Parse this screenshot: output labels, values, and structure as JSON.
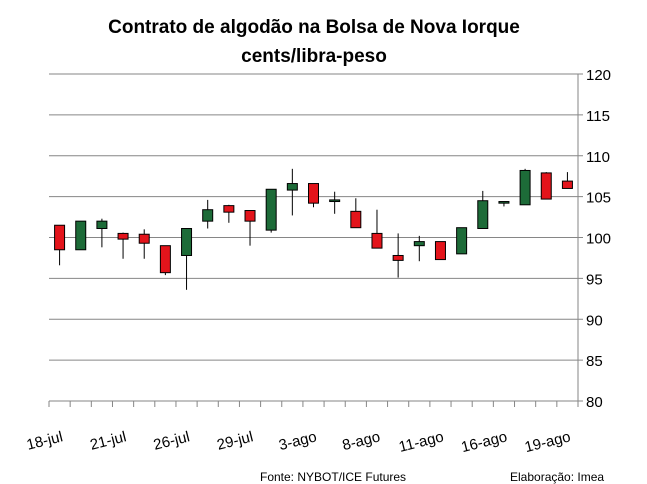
{
  "chart_data": {
    "type": "candlestick",
    "title": "Contrato de algodão na Bolsa de Nova Iorque",
    "subtitle": "cents/libra-peso",
    "categories": [
      "18-jul",
      null,
      null,
      "21-jul",
      null,
      null,
      "26-jul",
      null,
      null,
      "29-jul",
      null,
      null,
      "3-ago",
      null,
      null,
      "8-ago",
      null,
      null,
      "11-ago",
      null,
      null,
      "16-ago",
      null,
      null,
      "19-ago"
    ],
    "open": [
      101.5,
      98.5,
      101.1,
      100.5,
      100.4,
      99.0,
      97.8,
      102.0,
      103.9,
      103.3,
      100.9,
      105.8,
      106.6,
      104.4,
      103.2,
      100.5,
      97.8,
      99.0,
      99.5,
      98.0,
      101.1,
      104.2,
      104.0,
      107.9,
      106.9
    ],
    "high": [
      101.5,
      102.0,
      102.3,
      100.6,
      101.0,
      99.0,
      101.1,
      104.6,
      104.0,
      103.3,
      105.9,
      108.4,
      106.6,
      105.6,
      104.8,
      103.4,
      100.5,
      100.2,
      99.5,
      101.2,
      105.7,
      104.4,
      108.4,
      108.0,
      108.0
    ],
    "low": [
      96.6,
      98.5,
      98.8,
      97.4,
      97.4,
      95.4,
      93.6,
      101.1,
      101.8,
      99.0,
      100.6,
      102.7,
      103.7,
      102.9,
      101.2,
      98.7,
      95.1,
      97.1,
      97.3,
      98.0,
      101.1,
      103.8,
      104.0,
      104.7,
      106.0
    ],
    "close": [
      98.5,
      102.0,
      102.0,
      99.8,
      99.3,
      95.7,
      101.1,
      103.4,
      103.1,
      102.0,
      105.9,
      106.6,
      104.2,
      104.6,
      101.2,
      98.7,
      97.2,
      99.5,
      97.3,
      101.2,
      104.5,
      104.4,
      108.2,
      104.7,
      106.0
    ],
    "up_color": "#1d6b38",
    "down_color": "#e3141b",
    "ylim": [
      80,
      120
    ],
    "yticks": [
      80,
      85,
      90,
      95,
      100,
      105,
      110,
      115,
      120
    ],
    "grid": true,
    "source": "Fonte: NYBOT/ICE Futures",
    "credit": "Elaboração: Imea"
  }
}
